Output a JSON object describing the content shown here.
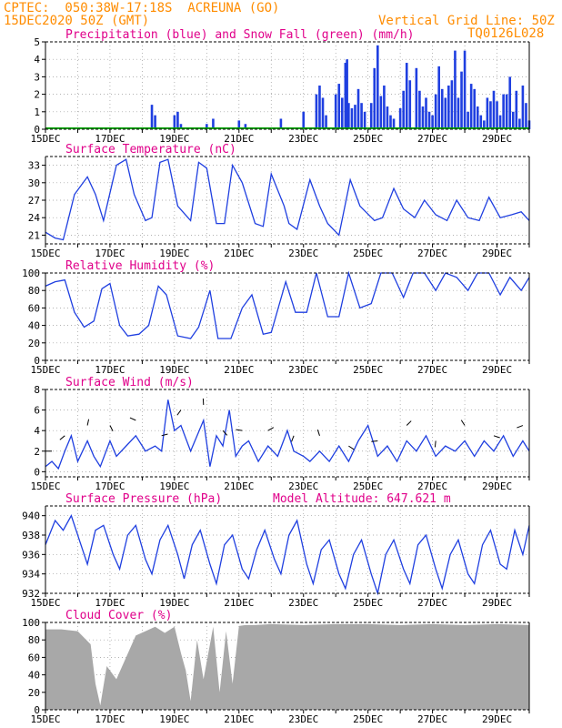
{
  "header": {
    "line1": "CPTEC:  050:38W-17:18S  ACREUNA (GO)",
    "line2": "15DEC2020 50Z (GMT)",
    "grid_note": "Vertical Grid Line: 50Z",
    "model_id": "TQ0126L028"
  },
  "colors": {
    "header": "#ff8c00",
    "title": "#e0008a",
    "line": "#1f3fe0",
    "snow": "#00a000",
    "cloud": "#a8a8a8",
    "grid": "#999999"
  },
  "x_labels": [
    "15DEC",
    "17DEC",
    "19DEC",
    "21DEC",
    "23DEC",
    "25DEC",
    "27DEC",
    "29DEC"
  ],
  "chart_data": [
    {
      "type": "bar",
      "title": "Precipitation (blue) and Snow Fall (green) (mm/h)",
      "ylim": [
        0,
        5
      ],
      "yticks": [
        0,
        1,
        2,
        3,
        4,
        5
      ],
      "x_range_days": [
        0,
        15
      ],
      "series": [
        {
          "name": "Precipitation",
          "x": [
            3.3,
            3.4,
            4.0,
            4.1,
            4.2,
            5.0,
            5.2,
            6.0,
            6.2,
            7.3,
            8.0,
            9.3,
            9.35,
            9.4,
            10.2,
            10.3,
            10.5,
            10.6,
            10.7,
            12.1,
            12.5,
            12.6,
            12.8,
            13.0,
            13.3,
            13.7,
            13.9,
            14.2,
            14.4,
            14.6,
            14.8,
            14.9,
            15.0,
            8.4,
            8.5,
            8.6,
            8.7,
            9.0,
            9.1,
            9.2,
            9.5,
            9.6,
            9.7,
            9.8,
            9.9,
            10.1,
            10.4,
            10.8,
            11.0,
            11.1,
            11.2,
            11.3,
            11.5,
            11.6,
            11.7,
            11.8,
            11.9,
            12.0,
            12.2,
            12.3,
            12.4,
            12.7,
            12.9,
            13.1,
            13.2,
            13.4,
            13.5,
            13.6,
            13.8,
            14.0,
            14.1,
            14.3,
            14.5,
            14.7
          ],
          "values": [
            1.4,
            0.8,
            0.8,
            1.0,
            0.3,
            0.3,
            0.6,
            0.5,
            0.3,
            0.6,
            1.0,
            3.8,
            4.0,
            1.5,
            3.5,
            4.8,
            2.5,
            1.3,
            0.8,
            2.0,
            2.5,
            2.8,
            1.8,
            4.5,
            2.3,
            1.8,
            2.2,
            2.0,
            3.0,
            2.2,
            2.5,
            1.5,
            0.5,
            2.0,
            2.5,
            1.8,
            0.8,
            2.0,
            2.6,
            1.8,
            1.2,
            1.4,
            2.3,
            1.5,
            1.0,
            1.5,
            1.9,
            0.6,
            1.2,
            2.2,
            3.8,
            2.8,
            3.5,
            2.2,
            1.3,
            1.8,
            1.0,
            0.8,
            3.6,
            2.3,
            1.8,
            4.5,
            3.3,
            1.0,
            2.6,
            1.3,
            0.8,
            0.5,
            1.6,
            1.6,
            0.8,
            2.0,
            1.0,
            0.6
          ]
        },
        {
          "name": "Snow Fall",
          "values": [
            0.05
          ]
        }
      ]
    },
    {
      "type": "line",
      "title": "Surface Temperature (nC)",
      "ylim": [
        19.5,
        34.5
      ],
      "yticks": [
        21,
        24,
        27,
        30,
        33
      ],
      "series": [
        {
          "name": "Temperature",
          "x": [
            0,
            0.3,
            0.55,
            0.9,
            1.3,
            1.55,
            1.8,
            2.2,
            2.5,
            2.75,
            3.1,
            3.3,
            3.55,
            3.8,
            4.1,
            4.5,
            4.75,
            5.0,
            5.3,
            5.55,
            5.8,
            6.1,
            6.5,
            6.75,
            7.0,
            7.4,
            7.55,
            7.8,
            8.2,
            8.5,
            8.75,
            9.1,
            9.45,
            9.75,
            10.2,
            10.45,
            10.8,
            11.1,
            11.45,
            11.75,
            12.1,
            12.45,
            12.75,
            13.1,
            13.45,
            13.75,
            14.1,
            14.45,
            14.75,
            15.0
          ],
          "values": [
            21.5,
            20.5,
            20.2,
            28.0,
            31.0,
            28.0,
            23.5,
            33.0,
            34.0,
            28.0,
            23.5,
            24.0,
            33.5,
            34.0,
            26.0,
            23.5,
            33.5,
            32.5,
            23.0,
            23.0,
            33.0,
            30.0,
            23.0,
            22.5,
            31.5,
            26.0,
            23.0,
            22.0,
            30.5,
            26.0,
            23.0,
            21.0,
            30.5,
            26.0,
            23.5,
            24.0,
            29.0,
            25.5,
            24.0,
            27.0,
            24.5,
            23.5,
            27.0,
            24.0,
            23.5,
            27.5,
            24.0,
            24.5,
            25.0,
            23.5
          ]
        }
      ]
    },
    {
      "type": "line",
      "title": "Relative Humidity (%)",
      "ylim": [
        0,
        100
      ],
      "yticks": [
        0,
        20,
        40,
        60,
        80,
        100
      ],
      "series": [
        {
          "name": "Humidity",
          "x": [
            0,
            0.3,
            0.6,
            0.9,
            1.2,
            1.5,
            1.75,
            2.0,
            2.3,
            2.55,
            2.9,
            3.2,
            3.5,
            3.75,
            4.1,
            4.5,
            4.75,
            5.1,
            5.35,
            5.75,
            6.1,
            6.4,
            6.75,
            7.0,
            7.45,
            7.75,
            8.1,
            8.4,
            8.75,
            9.1,
            9.4,
            9.75,
            10.1,
            10.4,
            10.75,
            11.1,
            11.4,
            11.75,
            12.1,
            12.4,
            12.75,
            13.1,
            13.4,
            13.75,
            14.1,
            14.4,
            14.75,
            15.0
          ],
          "values": [
            85,
            90,
            92,
            55,
            38,
            45,
            82,
            88,
            40,
            28,
            30,
            40,
            85,
            75,
            28,
            25,
            38,
            80,
            25,
            25,
            60,
            75,
            30,
            32,
            90,
            55,
            55,
            100,
            50,
            50,
            100,
            60,
            65,
            100,
            100,
            72,
            100,
            100,
            80,
            100,
            95,
            80,
            100,
            100,
            75,
            95,
            80,
            95
          ]
        }
      ]
    },
    {
      "type": "line",
      "title": "Surface Wind (m/s)",
      "ylim": [
        -0.5,
        8
      ],
      "yticks": [
        0,
        2,
        4,
        6,
        8
      ],
      "series": [
        {
          "name": "Wind speed",
          "x": [
            0,
            0.2,
            0.4,
            0.6,
            0.8,
            1.0,
            1.3,
            1.5,
            1.7,
            2.0,
            2.2,
            2.5,
            2.8,
            3.1,
            3.4,
            3.6,
            3.8,
            4.0,
            4.2,
            4.5,
            4.7,
            4.9,
            5.1,
            5.3,
            5.5,
            5.7,
            5.9,
            6.1,
            6.3,
            6.6,
            6.9,
            7.2,
            7.5,
            7.7,
            8.0,
            8.2,
            8.5,
            8.8,
            9.1,
            9.4,
            9.7,
            10.0,
            10.3,
            10.6,
            10.9,
            11.2,
            11.5,
            11.8,
            12.1,
            12.4,
            12.7,
            13.0,
            13.3,
            13.6,
            13.9,
            14.2,
            14.5,
            14.8,
            15.0
          ],
          "values": [
            0.5,
            1.0,
            0.3,
            2.0,
            3.5,
            1.0,
            3.0,
            1.5,
            0.5,
            3.0,
            1.5,
            2.5,
            3.5,
            2.0,
            2.5,
            2.0,
            7.0,
            4.0,
            4.5,
            2.0,
            3.5,
            5.0,
            0.5,
            3.5,
            2.5,
            6.0,
            1.5,
            2.5,
            3.0,
            1.0,
            2.5,
            1.5,
            4.0,
            2.0,
            1.5,
            1.0,
            2.0,
            1.0,
            2.5,
            1.0,
            3.0,
            4.5,
            1.5,
            2.5,
            1.0,
            3.0,
            2.0,
            3.5,
            1.5,
            2.5,
            2.0,
            3.0,
            1.5,
            3.0,
            2.0,
            3.5,
            1.5,
            3.0,
            2.0
          ]
        }
      ]
    },
    {
      "type": "line",
      "title": "Surface Pressure (hPa)",
      "model_altitude": "Model Altitude: 647.621 m",
      "ylim": [
        932,
        941
      ],
      "yticks": [
        932,
        934,
        936,
        938,
        940
      ],
      "series": [
        {
          "name": "Pressure",
          "x": [
            0,
            0.3,
            0.55,
            0.8,
            1.1,
            1.3,
            1.55,
            1.8,
            2.1,
            2.3,
            2.55,
            2.8,
            3.1,
            3.3,
            3.55,
            3.8,
            4.1,
            4.3,
            4.55,
            4.8,
            5.1,
            5.3,
            5.55,
            5.8,
            6.1,
            6.3,
            6.55,
            6.8,
            7.1,
            7.3,
            7.55,
            7.8,
            8.1,
            8.3,
            8.55,
            8.8,
            9.1,
            9.3,
            9.55,
            9.8,
            10.1,
            10.3,
            10.55,
            10.8,
            11.1,
            11.3,
            11.55,
            11.8,
            12.1,
            12.3,
            12.55,
            12.8,
            13.1,
            13.3,
            13.55,
            13.8,
            14.1,
            14.3,
            14.55,
            14.8,
            15.0
          ],
          "values": [
            937.0,
            939.5,
            938.5,
            940.0,
            937.0,
            935.0,
            938.5,
            939.0,
            936.0,
            934.5,
            938.0,
            939.0,
            935.5,
            934.0,
            937.5,
            939.0,
            936.0,
            933.5,
            937.0,
            938.5,
            935.0,
            933.0,
            937.0,
            938.0,
            934.5,
            933.5,
            936.5,
            938.5,
            935.5,
            934.0,
            938.0,
            939.5,
            935.0,
            933.0,
            936.5,
            937.5,
            934.0,
            932.5,
            936.0,
            937.5,
            934.0,
            932.0,
            936.0,
            937.5,
            934.5,
            933.0,
            937.0,
            938.0,
            934.5,
            932.5,
            936.0,
            937.5,
            934.0,
            933.0,
            937.0,
            938.5,
            935.0,
            934.5,
            938.5,
            936.0,
            939.0
          ]
        }
      ]
    },
    {
      "type": "area",
      "title": "Cloud Cover (%)",
      "ylim": [
        0,
        100
      ],
      "yticks": [
        0,
        20,
        40,
        60,
        80,
        100
      ],
      "series": [
        {
          "name": "Cloud Cover",
          "x": [
            0,
            0.5,
            1.0,
            1.4,
            1.55,
            1.7,
            1.9,
            2.2,
            2.5,
            2.8,
            3.1,
            3.4,
            3.7,
            4.0,
            4.2,
            4.35,
            4.5,
            4.7,
            4.9,
            5.2,
            5.4,
            5.6,
            5.8,
            6.0,
            6.2,
            6.5,
            7.0,
            8.0,
            9.0,
            10.0,
            11.0,
            12.0,
            13.0,
            14.0,
            15.0
          ],
          "values": [
            92,
            92,
            90,
            75,
            30,
            5,
            50,
            35,
            60,
            85,
            90,
            95,
            88,
            95,
            65,
            45,
            10,
            80,
            35,
            95,
            20,
            90,
            30,
            96,
            97,
            97,
            98,
            97,
            98,
            98,
            97,
            98,
            97,
            98,
            97
          ]
        }
      ]
    }
  ]
}
